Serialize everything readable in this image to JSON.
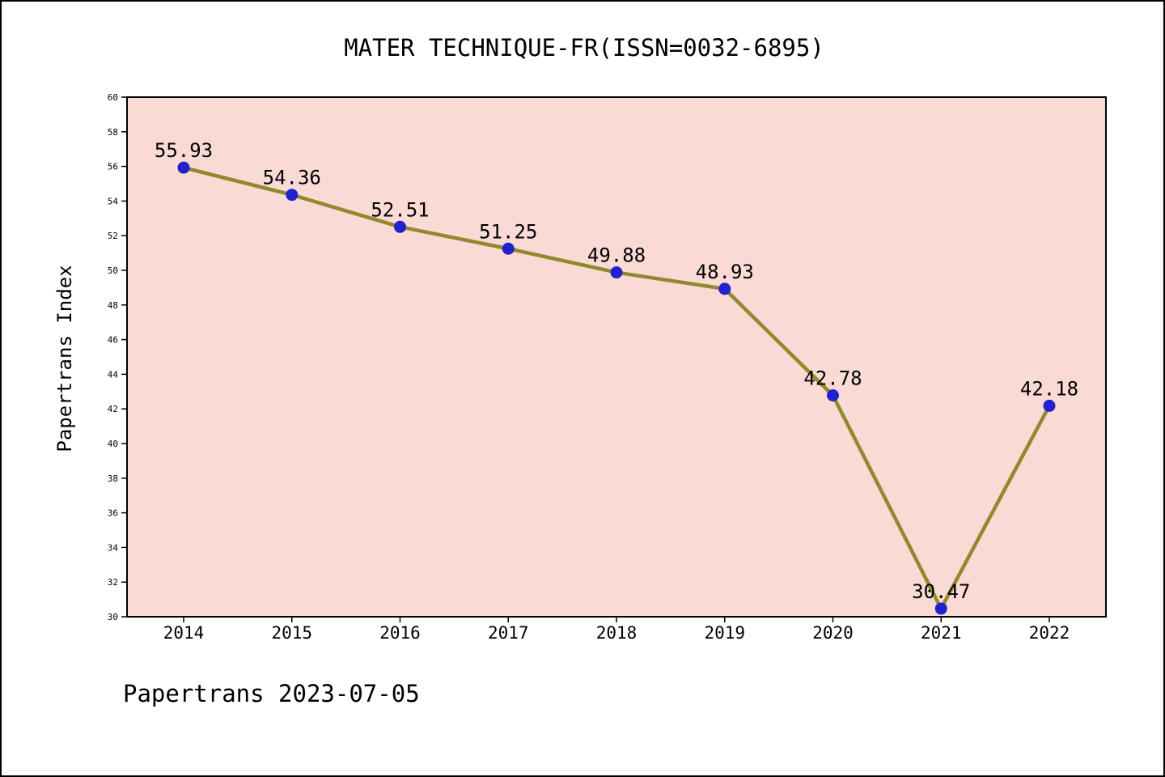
{
  "page": {
    "title": "MATER TECHNIQUE-FR(ISSN=0032-6895)",
    "footer": "Papertrans 2023-07-05"
  },
  "chart_data": {
    "type": "line",
    "title": "MATER TECHNIQUE-FR(ISSN=0032-6895)",
    "xlabel": "",
    "ylabel": "Papertrans Index",
    "categories": [
      "2014",
      "2015",
      "2016",
      "2017",
      "2018",
      "2019",
      "2020",
      "2021",
      "2022"
    ],
    "values": [
      55.93,
      54.36,
      52.51,
      51.25,
      49.88,
      48.93,
      42.78,
      30.47,
      42.18
    ],
    "point_labels": [
      "55.93",
      "54.36",
      "52.51",
      "51.25",
      "49.88",
      "48.93",
      "42.78",
      "30.47",
      "42.18"
    ],
    "ylim": [
      30,
      60
    ],
    "ytick_step": 2,
    "grid": false,
    "legend": "none",
    "annotation": "Papertrans 2023-07-05",
    "colors": {
      "line": "#91892e",
      "marker": "#2121cd",
      "plot_bg": "#f9dad5",
      "axis": "#000000",
      "text": "#000000"
    }
  }
}
